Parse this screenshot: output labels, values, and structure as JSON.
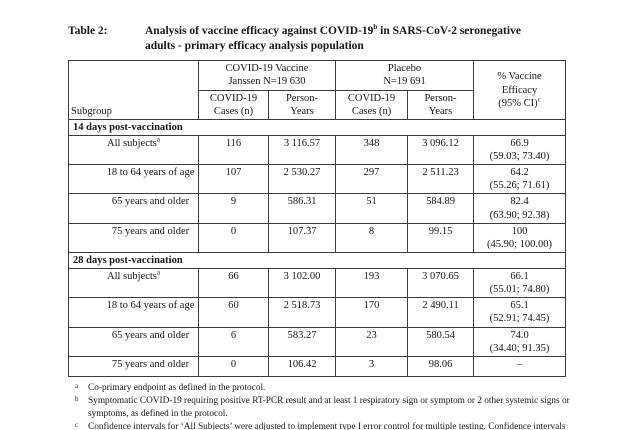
{
  "title": {
    "label": "Table 2:",
    "line1_pre": "Analysis of vaccine efficacy against COVID-19",
    "line1_sup": "b",
    "line1_post": " in SARS-CoV-2 seronegative",
    "line2": "adults - primary efficacy analysis population"
  },
  "table": {
    "header": {
      "subgroup": "Subgroup",
      "vaccine_line1": "COVID-19 Vaccine",
      "vaccine_line2": "Janssen N=19 630",
      "placebo_line1": "Placebo",
      "placebo_line2": "N=19 691",
      "cases_line1": "COVID-19",
      "cases_line2": "Cases (n)",
      "py_line1": "Person-",
      "py_line2": "Years",
      "efficacy_line1": "% Vaccine",
      "efficacy_line2": "Efficacy",
      "efficacy_line3": "(95% CI)",
      "efficacy_sup": "c"
    },
    "sections": [
      {
        "label": "14 days post-vaccination",
        "rows": [
          {
            "subgroup": "All subjects",
            "sup": "a",
            "vaccine_cases": "116",
            "vaccine_py": "3 116.57",
            "placebo_cases": "348",
            "placebo_py": "3 096.12",
            "efficacy": "66.9",
            "ci": "(59.03; 73.40)"
          },
          {
            "subgroup": "18 to 64 years of age",
            "sup": "",
            "vaccine_cases": "107",
            "vaccine_py": "2 530.27",
            "placebo_cases": "297",
            "placebo_py": "2 511.23",
            "efficacy": "64.2",
            "ci": "(55.26; 71.61)"
          },
          {
            "subgroup": "65 years and older",
            "sup": "",
            "vaccine_cases": "9",
            "vaccine_py": "586.31",
            "placebo_cases": "51",
            "placebo_py": "584.89",
            "efficacy": "82.4",
            "ci": "(63.90; 92.38)"
          },
          {
            "subgroup": "75 years and older",
            "sup": "",
            "vaccine_cases": "0",
            "vaccine_py": "107.37",
            "placebo_cases": "8",
            "placebo_py": "99.15",
            "efficacy": "100",
            "ci": "(45.90; 100.00)"
          }
        ]
      },
      {
        "label": "28 days post-vaccination",
        "rows": [
          {
            "subgroup": "All subjects",
            "sup": "a",
            "vaccine_cases": "66",
            "vaccine_py": "3 102.00",
            "placebo_cases": "193",
            "placebo_py": "3 070.65",
            "efficacy": "66.1",
            "ci": "(55.01; 74.80)"
          },
          {
            "subgroup": "18 to 64 years of age",
            "sup": "",
            "vaccine_cases": "60",
            "vaccine_py": "2 518.73",
            "placebo_cases": "170",
            "placebo_py": "2 490.11",
            "efficacy": "65.1",
            "ci": "(52.91; 74.45)"
          },
          {
            "subgroup": "65 years and older",
            "sup": "",
            "vaccine_cases": "6",
            "vaccine_py": "583.27",
            "placebo_cases": "23",
            "placebo_py": "580.54",
            "efficacy": "74.0",
            "ci": "(34.40; 91.35)"
          },
          {
            "subgroup": "75 years and older",
            "sup": "",
            "vaccine_cases": "0",
            "vaccine_py": "106.42",
            "placebo_cases": "3",
            "placebo_py": "98.06",
            "efficacy": "–",
            "ci": ""
          }
        ]
      }
    ]
  },
  "footnotes": [
    {
      "marker": "a",
      "text": "Co-primary endpoint as defined in the protocol."
    },
    {
      "marker": "b",
      "text": "Symptomatic COVID-19 requiring positive RT-PCR result and at least 1 respiratory sign or symptom or 2 other systemic signs or symptoms, as defined in the protocol."
    },
    {
      "marker": "c",
      "text": "Confidence intervals for ‘All Subjects’ were adjusted to implement type I error control for multiple testing. Confidence intervals for age groups are presented unadjusted."
    }
  ]
}
